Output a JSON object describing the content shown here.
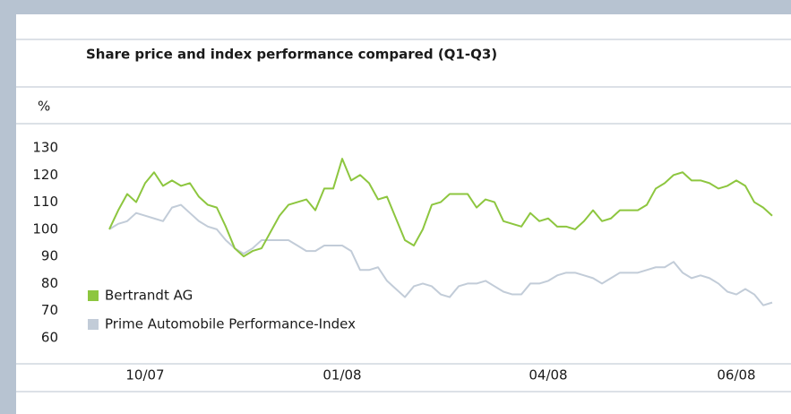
{
  "chart_data": {
    "type": "line",
    "title": "Share price and index performance compared (Q1-Q3)",
    "y_label": "%",
    "categories": [
      null,
      null,
      null,
      null,
      "10/07",
      null,
      null,
      null,
      null,
      null,
      null,
      null,
      null,
      null,
      null,
      null,
      null,
      null,
      null,
      null,
      null,
      null,
      null,
      null,
      null,
      null,
      "01/08",
      null,
      null,
      null,
      null,
      null,
      null,
      null,
      null,
      null,
      null,
      null,
      null,
      null,
      null,
      null,
      null,
      null,
      null,
      null,
      null,
      null,
      null,
      "04/08",
      null,
      null,
      null,
      null,
      null,
      null,
      null,
      null,
      null,
      null,
      null,
      null,
      null,
      null,
      null,
      null,
      null,
      null,
      null,
      null,
      "06/08",
      null,
      null,
      null,
      null
    ],
    "series": [
      {
        "name": "Bertrandt AG",
        "color": "#8dc63f",
        "values": [
          100,
          107,
          113,
          110,
          117,
          121,
          116,
          118,
          116,
          117,
          112,
          109,
          108,
          101,
          93,
          90,
          92,
          93,
          99,
          105,
          109,
          110,
          111,
          107,
          115,
          115,
          126,
          118,
          120,
          117,
          111,
          112,
          104,
          96,
          94,
          100,
          109,
          110,
          113,
          113,
          113,
          108,
          111,
          110,
          103,
          102,
          101,
          106,
          103,
          104,
          101,
          101,
          100,
          103,
          107,
          103,
          104,
          107,
          107,
          107,
          109,
          115,
          117,
          120,
          121,
          118,
          118,
          117,
          115,
          116,
          118,
          116,
          110,
          108,
          105
        ]
      },
      {
        "name": "Prime Automobile Performance-Index",
        "color": "#c2ccd8",
        "values": [
          100,
          102,
          103,
          106,
          105,
          104,
          103,
          108,
          109,
          106,
          103,
          101,
          100,
          96,
          93,
          91,
          93,
          96,
          96,
          96,
          96,
          94,
          92,
          92,
          94,
          94,
          94,
          92,
          85,
          85,
          86,
          81,
          78,
          75,
          79,
          80,
          79,
          76,
          75,
          79,
          80,
          80,
          81,
          79,
          77,
          76,
          76,
          80,
          80,
          81,
          83,
          84,
          84,
          83,
          82,
          80,
          82,
          84,
          84,
          84,
          85,
          86,
          86,
          88,
          84,
          82,
          83,
          82,
          80,
          77,
          76,
          78,
          76,
          72,
          73
        ]
      }
    ],
    "ylim": [
      60,
      130
    ],
    "yticks": [
      60,
      70,
      80,
      90,
      100,
      110,
      120,
      130
    ],
    "legend": "lower left"
  }
}
